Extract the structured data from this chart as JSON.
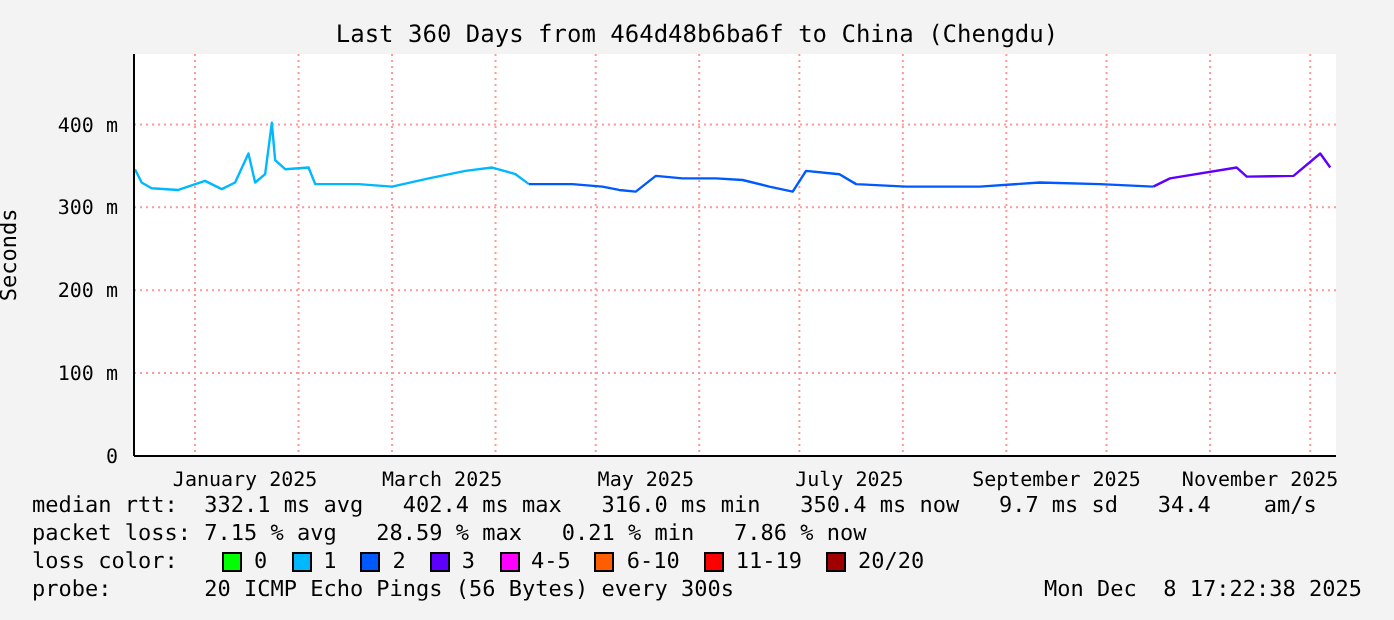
{
  "chart_data": {
    "type": "line",
    "title": "Last 360 Days from 464d48b6ba6f to China (Chengdu)",
    "ylabel": "Seconds",
    "xlim": [
      "2024-12-13T17:22",
      "2025-12-08T17:22"
    ],
    "xticks": [
      {
        "value": "2025-01-01",
        "label": null
      },
      {
        "value": "2025-01-16",
        "label": "January 2025"
      },
      {
        "value": "2025-02-01",
        "label": null
      },
      {
        "value": "2025-03-01",
        "label": null
      },
      {
        "value": "2025-03-16",
        "label": "March 2025"
      },
      {
        "value": "2025-04-01",
        "label": null
      },
      {
        "value": "2025-05-01",
        "label": null
      },
      {
        "value": "2025-05-16",
        "label": "May 2025"
      },
      {
        "value": "2025-06-01",
        "label": null
      },
      {
        "value": "2025-07-01",
        "label": null
      },
      {
        "value": "2025-07-16",
        "label": "July 2025"
      },
      {
        "value": "2025-08-01",
        "label": null
      },
      {
        "value": "2025-09-01",
        "label": null
      },
      {
        "value": "2025-09-16",
        "label": "September 2025"
      },
      {
        "value": "2025-10-01",
        "label": null
      },
      {
        "value": "2025-11-01",
        "label": null
      },
      {
        "value": "2025-11-16",
        "label": "November 2025"
      },
      {
        "value": "2025-12-01",
        "label": null
      }
    ],
    "ylim": [
      0,
      485
    ],
    "yticks": [
      0,
      {
        "value": 100,
        "label": "100 m"
      },
      {
        "value": 200,
        "label": "200 m"
      },
      {
        "value": 300,
        "label": "300 m"
      },
      {
        "value": 400,
        "label": "400 m"
      }
    ],
    "grid": true,
    "legend": "bottom left",
    "line_style": "solid",
    "marker": "none",
    "series": [
      {
        "name": "0",
        "color": "#00ff00"
      },
      {
        "name": "1",
        "color": "#00b8ff",
        "x": [
          "2024-12-14",
          "2024-12-16",
          "2024-12-19",
          "2024-12-27",
          "2025-01-04",
          "2025-01-09",
          "2025-01-13",
          "2025-01-17",
          "2025-01-19",
          "2025-01-22",
          "2025-01-24",
          "2025-01-25",
          "2025-01-28",
          "2025-02-04",
          "2025-02-06",
          "2025-02-19",
          "2025-03-01",
          "2025-03-12",
          "2025-03-23",
          "2025-03-31",
          "2025-04-07",
          "2025-04-11"
        ],
        "values": [
          346,
          330,
          323,
          321,
          332,
          322,
          330,
          365,
          330,
          340,
          402,
          357,
          346,
          348,
          328,
          328,
          325,
          335,
          344,
          348,
          340,
          328
        ]
      },
      {
        "name": "2",
        "color": "#0059ff",
        "x": [
          "2025-04-11",
          "2025-04-24",
          "2025-05-03",
          "2025-05-08",
          "2025-05-13",
          "2025-05-19",
          "2025-05-27",
          "2025-06-06",
          "2025-06-14",
          "2025-06-22",
          "2025-06-29",
          "2025-07-03",
          "2025-07-13",
          "2025-07-18",
          "2025-08-02",
          "2025-08-24",
          "2025-09-11",
          "2025-09-29",
          "2025-10-15"
        ],
        "values": [
          328,
          328,
          325,
          321,
          319,
          338,
          335,
          335,
          333,
          325,
          319,
          344,
          340,
          328,
          325,
          325,
          330,
          328,
          325
        ]
      },
      {
        "name": "3",
        "color": "#5e00ff",
        "x": [
          "2025-10-15",
          "2025-10-20",
          "2025-11-09",
          "2025-11-12",
          "2025-11-26",
          "2025-12-04",
          "2025-12-07"
        ],
        "values": [
          325,
          335,
          348,
          337,
          338,
          365,
          348
        ]
      },
      {
        "name": "4-5",
        "color": "#ff00ff"
      },
      {
        "name": "6-10",
        "color": "#ff5e00"
      },
      {
        "name": "11-19",
        "color": "#ff0000"
      },
      {
        "name": "20/20",
        "color": "#a10000"
      }
    ],
    "legend_title": "loss color:",
    "annotations": [
      "median rtt:  332.1 ms avg   402.4 ms max   316.0 ms min   350.4 ms now   9.7 ms sd   34.4    am/s",
      "packet loss: 7.15 % avg   28.59 % max   0.21 % min   7.86 % now",
      "probe:       20 ICMP Echo Pings (56 Bytes) every 300s",
      "Mon Dec  8 17:22:38 2025"
    ]
  }
}
